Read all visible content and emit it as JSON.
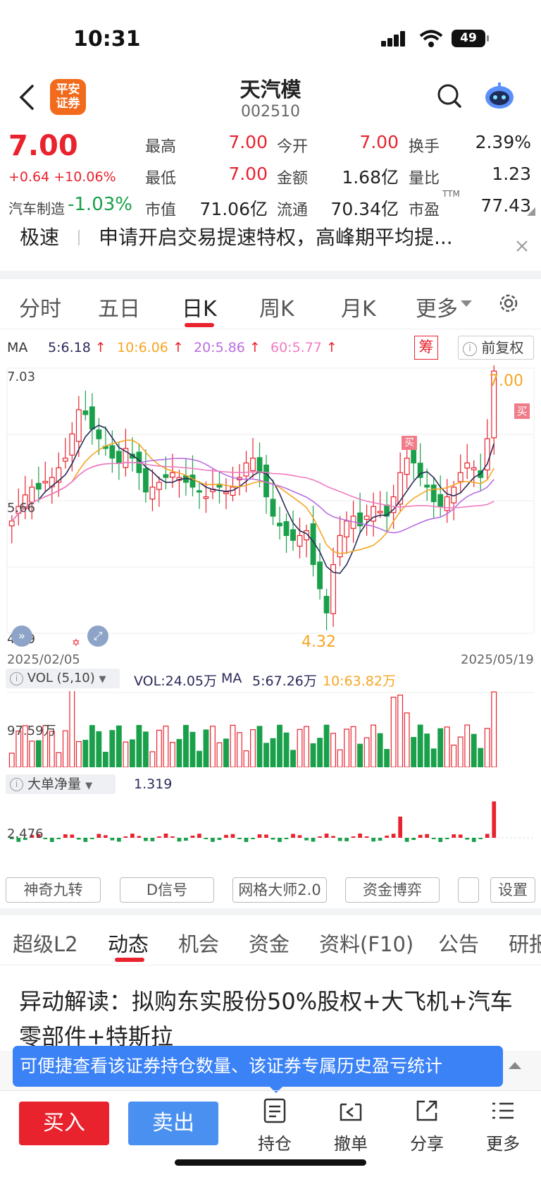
{
  "status": {
    "time": "10:31",
    "battery": "49"
  },
  "header": {
    "title": "天汽模",
    "code": "002510",
    "logo_line1": "平安",
    "logo_line2": "证券"
  },
  "quote": {
    "price": "7.00",
    "change": "+0.64 +10.06%",
    "sector_name": "汽车制造",
    "sector_change": "-1.03%",
    "rows": [
      [
        {
          "label": "最高",
          "value": "7.00"
        },
        {
          "label": "今开",
          "value": "7.00"
        },
        {
          "label": "换手",
          "value": "2.39%"
        }
      ],
      [
        {
          "label": "最低",
          "value": "7.00"
        },
        {
          "label": "金额",
          "value": "1.68亿"
        },
        {
          "label": "量比",
          "value": "1.23"
        }
      ],
      [
        {
          "label": "市值",
          "value": "71.06亿"
        },
        {
          "label": "流通",
          "value": "70.34亿"
        },
        {
          "label": "市盈",
          "value": "77.43",
          "sup": "TTM"
        }
      ]
    ]
  },
  "notice": {
    "tag": "极速",
    "text": "申请开启交易提速特权，高峰期平均提..."
  },
  "chart_tabs": [
    "分时",
    "五日",
    "日K",
    "周K",
    "月K",
    "更多"
  ],
  "ma_legend": {
    "label": "MA",
    "ma5": "5:6.18",
    "ma10": "10:6.06",
    "ma20": "20:5.86",
    "ma60": "60:5.77",
    "chou": "筹",
    "fq": "前复权"
  },
  "kline": {
    "y_high": "7.03",
    "y_mid": "5.66",
    "y_low": "4.29",
    "max_label": "7.00",
    "min_label": "4.32",
    "date_start": "2025/02/05",
    "date_end": "2025/05/19",
    "buy_tag": "买"
  },
  "vol_legend": {
    "name": "VOL (5,10)",
    "vol": "VOL:24.05万",
    "ma": "MA",
    "ma5": "5:67.26万",
    "ma10": "10:63.82万",
    "axis": "97.59万"
  },
  "big_order": {
    "name": "大单净量",
    "value": "1.319",
    "axis": "2.476"
  },
  "tools": [
    "神奇九转",
    "D信号",
    "网格大师2.0",
    "资金博弈",
    "设置"
  ],
  "news_tabs": [
    "超级L2",
    "动态",
    "机会",
    "资金",
    "资料(F10)",
    "公告",
    "研报"
  ],
  "headline": "异动解读：拟购东实股份50%股权+大飞机+汽车零部件+特斯拉",
  "tooltip": "可便捷查看该证券持仓数量、该证券专属历史盈亏统计",
  "bottom": {
    "buy": "买入",
    "sell": "卖出",
    "hold": "持仓",
    "cancel": "撤单",
    "share": "分享",
    "more": "更多"
  },
  "colors": {
    "up": "#e8232e",
    "down": "#1aa04a",
    "ma5": "#2a2a5a",
    "ma10": "#f5a623",
    "ma20": "#b86ee0",
    "ma60": "#f07cc0",
    "accent": "#3b82f6"
  },
  "chart_data": {
    "type": "candlestick",
    "x_range": [
      "2025/02/05",
      "2025/05/19"
    ],
    "ylim": [
      4.29,
      7.03
    ],
    "max_price": 7.0,
    "min_price": 4.32,
    "series": [
      {
        "name": "MA5",
        "last": 6.18
      },
      {
        "name": "MA10",
        "last": 6.06
      },
      {
        "name": "MA20",
        "last": 5.86
      },
      {
        "name": "MA60",
        "last": 5.77
      }
    ]
  }
}
